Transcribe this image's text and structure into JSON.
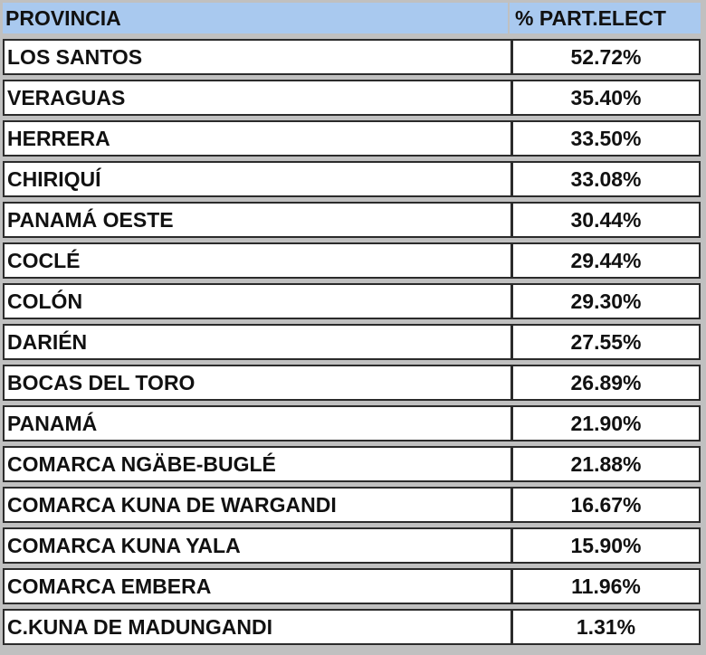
{
  "table": {
    "columns": [
      "PROVINCIA",
      "% PART.ELECT"
    ],
    "rows": [
      {
        "provincia": "LOS SANTOS",
        "part_elect": "52.72%"
      },
      {
        "provincia": "VERAGUAS",
        "part_elect": "35.40%"
      },
      {
        "provincia": "HERRERA",
        "part_elect": "33.50%"
      },
      {
        "provincia": "CHIRIQUÍ",
        "part_elect": "33.08%"
      },
      {
        "provincia": "PANAMÁ OESTE",
        "part_elect": "30.44%"
      },
      {
        "provincia": "COCLÉ",
        "part_elect": "29.44%"
      },
      {
        "provincia": "COLÓN",
        "part_elect": "29.30%"
      },
      {
        "provincia": "DARIÉN",
        "part_elect": "27.55%"
      },
      {
        "provincia": "BOCAS DEL TORO",
        "part_elect": "26.89%"
      },
      {
        "provincia": "PANAMÁ",
        "part_elect": "21.90%"
      },
      {
        "provincia": "COMARCA NGÄBE-BUGLÉ",
        "part_elect": "21.88%"
      },
      {
        "provincia": "COMARCA KUNA DE WARGANDI",
        "part_elect": "16.67%"
      },
      {
        "provincia": "COMARCA KUNA YALA",
        "part_elect": "15.90%"
      },
      {
        "provincia": "COMARCA EMBERA",
        "part_elect": "11.96%"
      },
      {
        "provincia": "C.KUNA DE MADUNGANDI",
        "part_elect": "1.31%"
      }
    ]
  },
  "colors": {
    "header_bg": "#a9c9ef",
    "page_bg": "#c0c0c0",
    "cell_bg": "#ffffff",
    "cell_border": "#2b2b2b"
  }
}
